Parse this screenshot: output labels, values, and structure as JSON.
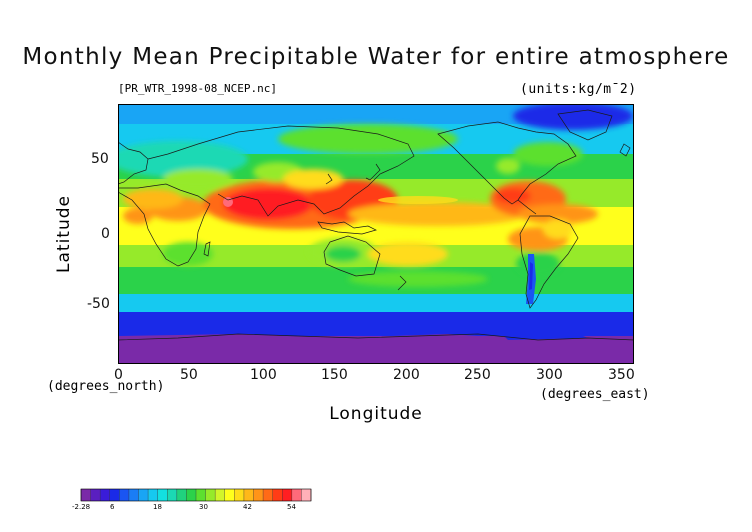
{
  "title": "Monthly Mean Precipitable Water for entire atmosphere",
  "file_label": "[PR_WTR_1998-08_NCEP.nc]",
  "units_label": "(units:kg/m¯2)",
  "x_label": "Longitude",
  "y_label": "Latitude",
  "x_unit_label": "(degrees_north)",
  "x_unit_label_2": "(degrees_east)",
  "x_ticks": [
    "0",
    "50",
    "100",
    "150",
    "200",
    "250",
    "300",
    "350"
  ],
  "y_ticks": [
    "50",
    "0",
    "-50"
  ],
  "colorbar": {
    "tick_labels": [
      "-2.28",
      "6",
      "18",
      "30",
      "42",
      "54"
    ],
    "colors": [
      "#7a2aa8",
      "#5a1fc0",
      "#3a1cd8",
      "#1a2ae8",
      "#1a55f2",
      "#1a7df5",
      "#19a5f5",
      "#16c9f0",
      "#13e0e0",
      "#1bd9b4",
      "#20d27d",
      "#2bd24a",
      "#5ce02f",
      "#96ea2a",
      "#d2f52a",
      "#ffff1c",
      "#ffdc1a",
      "#ffb819",
      "#ff9418",
      "#ff6a17",
      "#ff3c16",
      "#ff1e22",
      "#ff6a7a",
      "#ffb0b8"
    ]
  },
  "map": {
    "lon_range": [
      0,
      360
    ],
    "lat_range": [
      -90,
      90
    ],
    "field": "precipitable water",
    "month": "1998-08"
  }
}
